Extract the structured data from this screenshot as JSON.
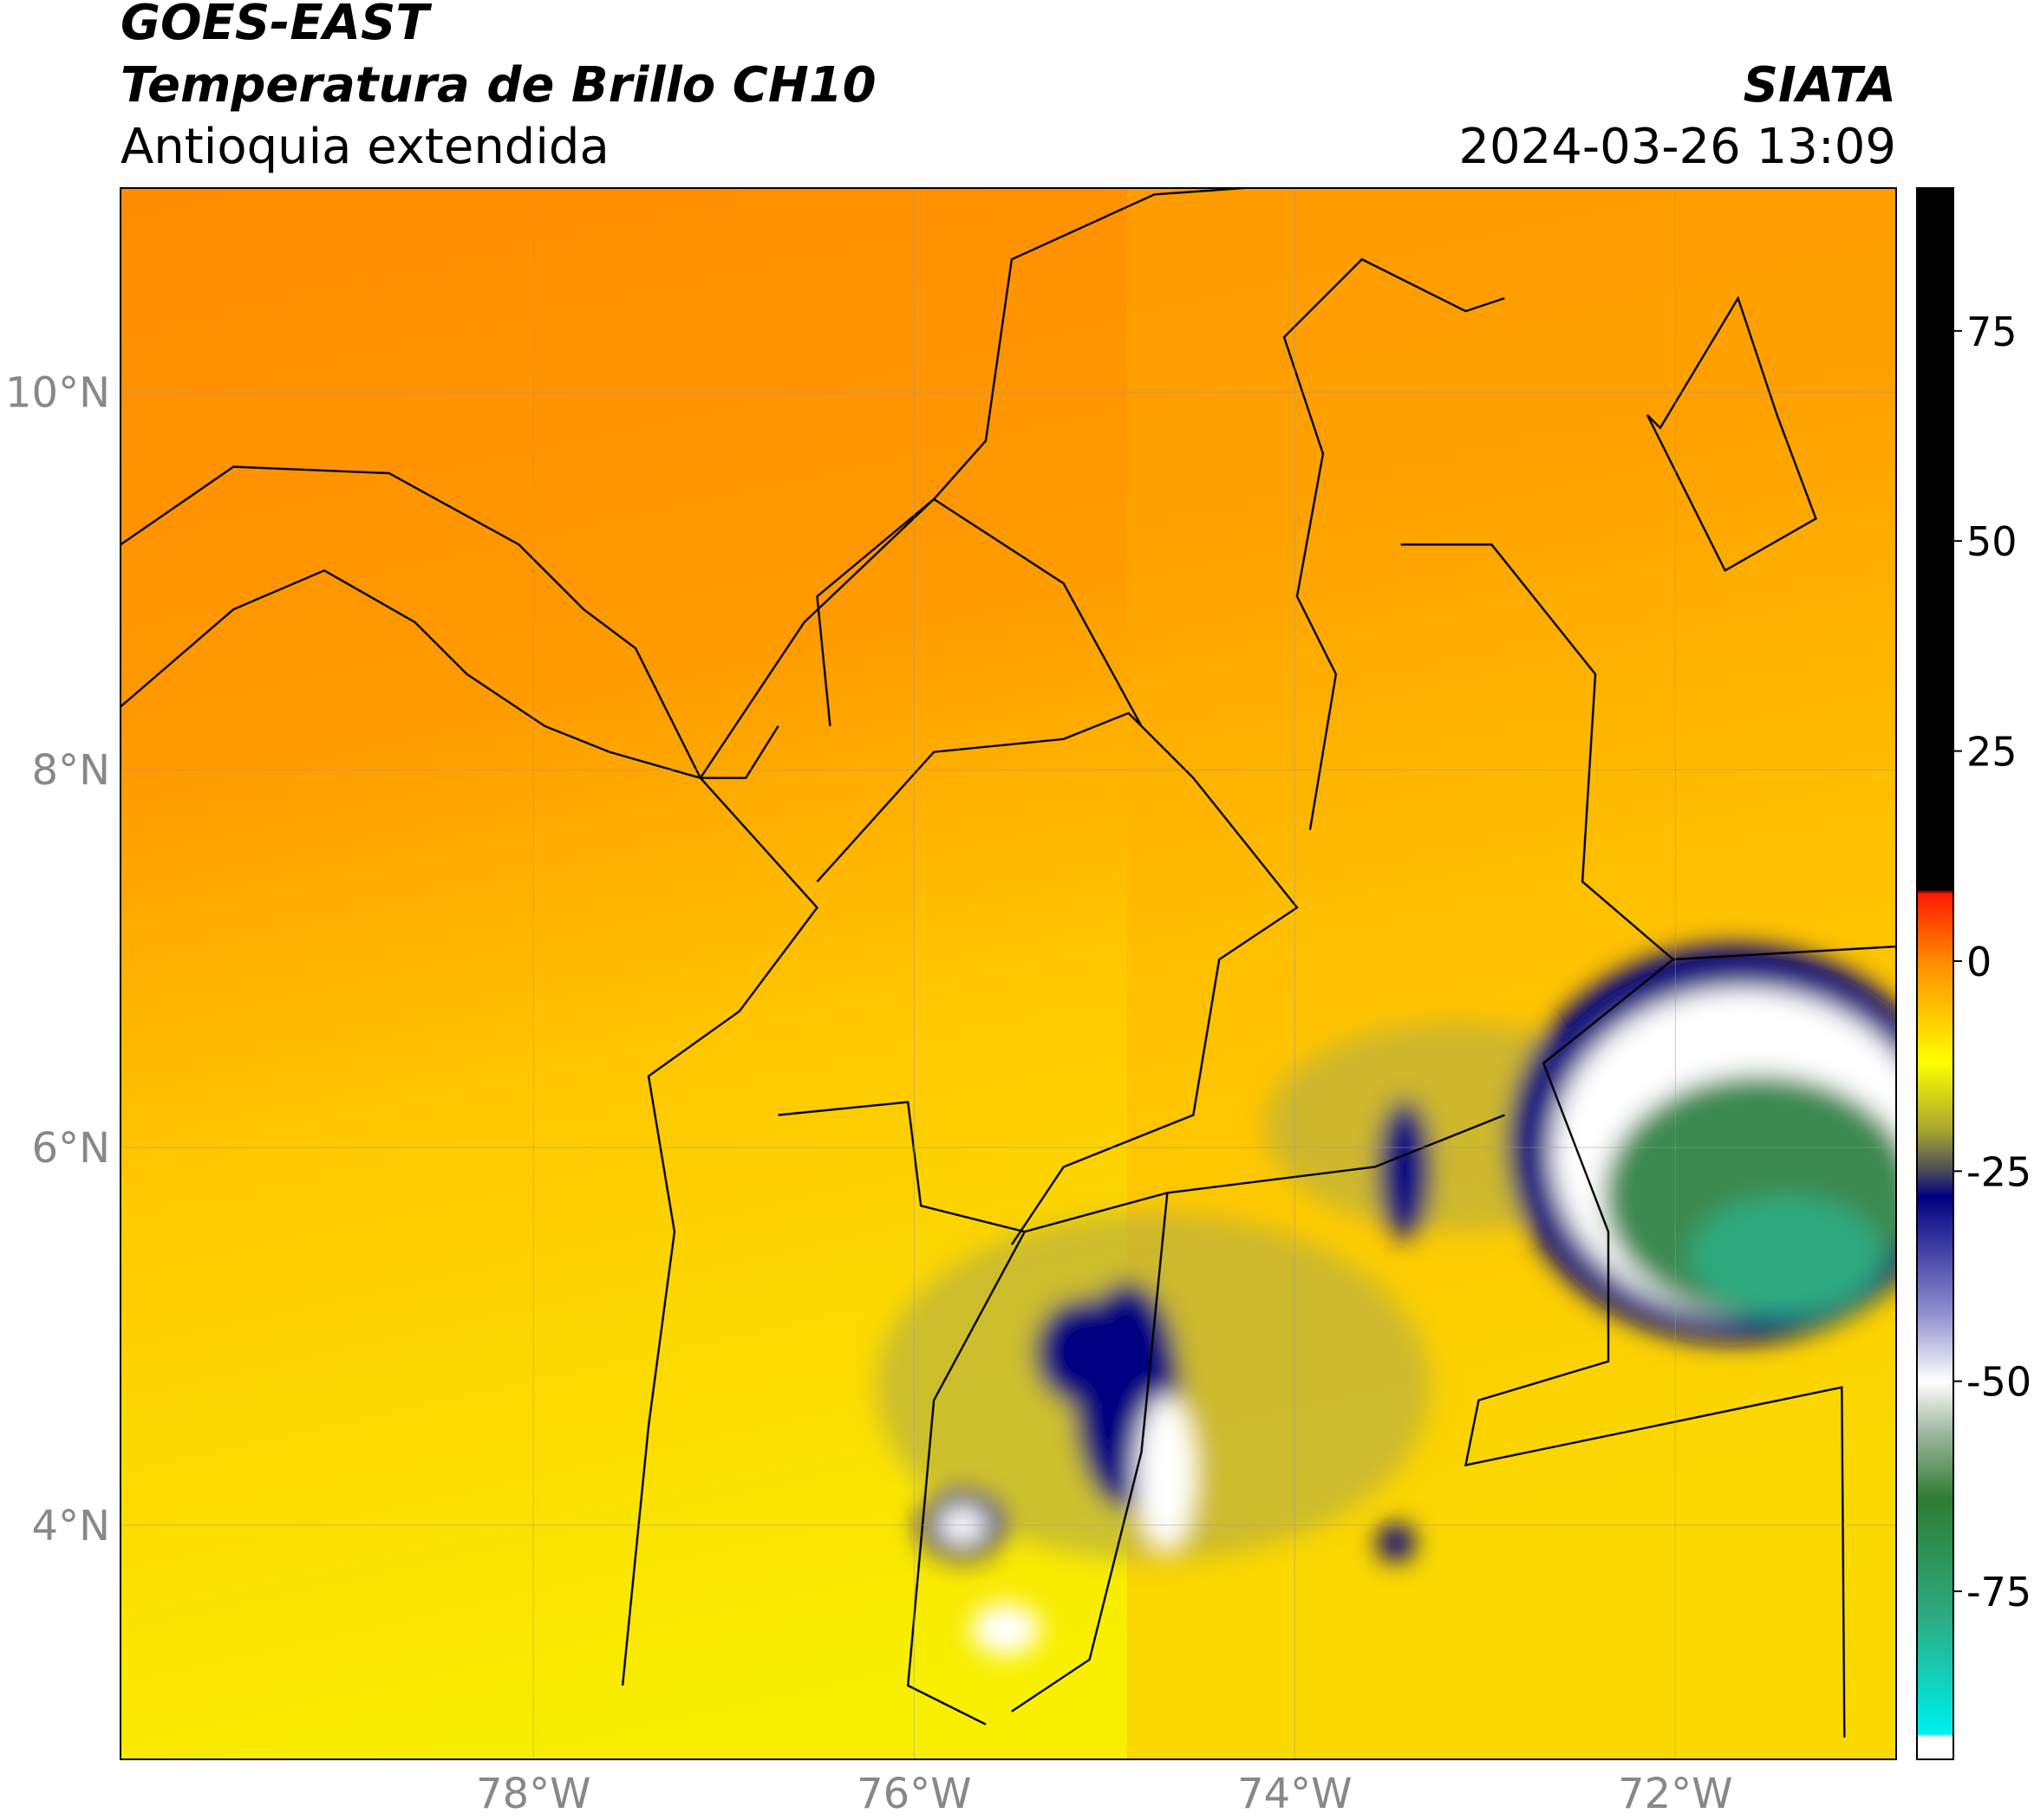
{
  "header": {
    "title": "GOES-EAST",
    "product": "Temperatura de Brillo CH10",
    "region": "Antioquia extendida",
    "source": "SIATA",
    "datetime": "2024-03-26 13:09"
  },
  "map": {
    "xlim": [
      -80.17,
      -70.84
    ],
    "ylim": [
      2.76,
      11.08
    ],
    "xticks": [
      {
        "value": -78,
        "label": "78°W"
      },
      {
        "value": -76,
        "label": "76°W"
      },
      {
        "value": -74,
        "label": "74°W"
      },
      {
        "value": -72,
        "label": "72°W"
      }
    ],
    "yticks": [
      {
        "value": 10,
        "label": "10°N"
      },
      {
        "value": 8,
        "label": "8°N"
      },
      {
        "value": 6,
        "label": "6°N"
      },
      {
        "value": 4,
        "label": "4°N"
      }
    ],
    "grid": true
  },
  "colorbar": {
    "lim": [
      -95,
      92
    ],
    "ticks": [
      75,
      50,
      25,
      0,
      -25,
      -50,
      -75
    ],
    "stops": [
      [
        92,
        "#000000"
      ],
      [
        8.5,
        "#000000"
      ],
      [
        8,
        "#ff1a00"
      ],
      [
        0,
        "#ff8a00"
      ],
      [
        -12,
        "#ffff00"
      ],
      [
        -20,
        "#a8a830"
      ],
      [
        -25,
        "#4a4a5a"
      ],
      [
        -28,
        "#000080"
      ],
      [
        -42,
        "#9090d0"
      ],
      [
        -50,
        "#ffffff"
      ],
      [
        -56,
        "#a0b8a0"
      ],
      [
        -64,
        "#2e7d32"
      ],
      [
        -78,
        "#2eaa80"
      ],
      [
        -90,
        "#00e8e0"
      ],
      [
        -92,
        "#00f0f0"
      ],
      [
        -92.3,
        "#ffffff"
      ],
      [
        -95,
        "#ffffff"
      ]
    ]
  }
}
